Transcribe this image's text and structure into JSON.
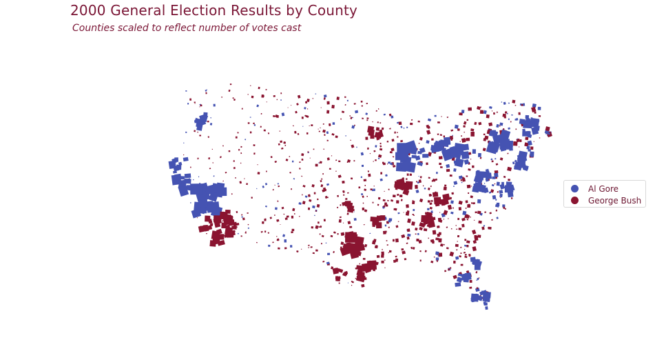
{
  "title": "2000 General Election Results by County",
  "subtitle": "Counties scaled to reflect number of votes cast",
  "legend": [
    {
      "label": "Al Gore",
      "color": "#4553b2"
    },
    {
      "label": "George Bush",
      "color": "#8a1430"
    }
  ],
  "colors": {
    "gore": "#4553b2",
    "bush": "#8a1430",
    "title": "#7a1535"
  }
}
